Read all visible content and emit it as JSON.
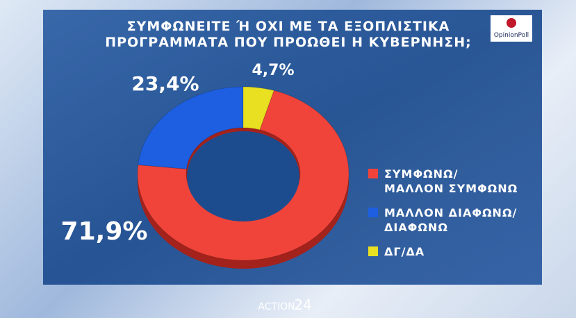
{
  "chart_data": {
    "type": "donut",
    "title": [
      "ΣΥΜΦΩΝΕΙΤΕ Ή ΟΧΙ ΜΕ ΤΑ ΕΞΟΠΛΙΣΤΙΚΑ",
      "ΠΡΟΓΡΑΜΜΑΤΑ ΠΟΥ ΠΡΟΩΘΕΙ Η ΚΥΒΕΡΝΗΣΗ;"
    ],
    "categories": [
      "ΣΥΜΦΩΝΩ/\nΜΑΛΛΟΝ ΣΥΜΦΩΝΩ",
      "ΜΑΛΛΟΝ ΔΙΑΦΩΝΩ/\nΔΙΑΦΩΝΩ",
      "ΔΓ/ΔΑ"
    ],
    "values": [
      71.9,
      23.4,
      4.7
    ],
    "value_labels": [
      "71,9%",
      "23,4%",
      "4,7%"
    ],
    "colors": [
      "#f0443a",
      "#1d5fe0",
      "#e8e020"
    ],
    "source": "OpinionPoll",
    "channel": "ACTION",
    "channel_number": "24"
  }
}
